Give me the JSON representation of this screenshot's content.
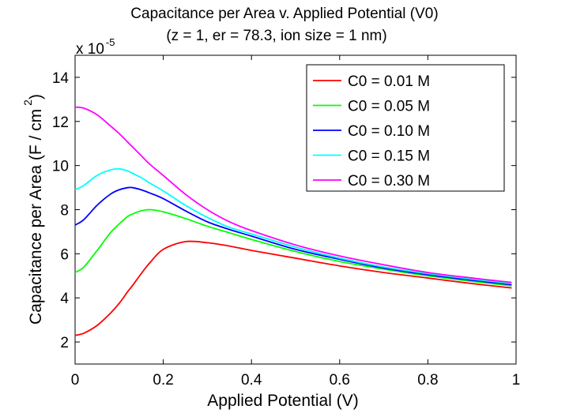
{
  "chart_data": {
    "type": "line",
    "title": "Capacitance per Area v. Applied Potential (V0)",
    "subtitle": "(z = 1, er = 78.3, ion size = 1 nm)",
    "xlabel": "Applied Potential (V)",
    "ylabel": "Capacitance per Area (F / cm",
    "ylabel_superscript": "2",
    "ylabel_close": ")",
    "y_multiplier_base": "x 10",
    "y_multiplier_exp": "-5",
    "xlim": [
      0,
      1
    ],
    "ylim": [
      1,
      15
    ],
    "x_ticks": [
      0,
      0.2,
      0.4,
      0.6,
      0.8,
      1
    ],
    "x_tick_labels": [
      "0",
      "0.2",
      "0.4",
      "0.6",
      "0.8",
      "1"
    ],
    "y_ticks": [
      2,
      4,
      6,
      8,
      10,
      12,
      14
    ],
    "y_tick_labels": [
      "2",
      "4",
      "6",
      "8",
      "10",
      "12",
      "14"
    ],
    "grid": false,
    "legend_position": "top-right",
    "x": [
      0,
      0.02,
      0.05,
      0.08,
      0.1,
      0.12,
      0.13,
      0.15,
      0.17,
      0.2,
      0.25,
      0.3,
      0.35,
      0.4,
      0.5,
      0.6,
      0.7,
      0.8,
      0.9,
      0.99
    ],
    "series": [
      {
        "name": "C0 = 0.01 M",
        "color": "#ff0000",
        "values": [
          2.3,
          2.4,
          2.75,
          3.3,
          3.75,
          4.3,
          4.55,
          5.1,
          5.6,
          6.2,
          6.55,
          6.5,
          6.35,
          6.15,
          5.8,
          5.45,
          5.15,
          4.9,
          4.65,
          4.45
        ]
      },
      {
        "name": "C0 = 0.05 M",
        "color": "#00ff00",
        "values": [
          5.15,
          5.4,
          6.15,
          6.95,
          7.35,
          7.7,
          7.8,
          7.95,
          8.0,
          7.9,
          7.6,
          7.25,
          6.95,
          6.65,
          6.1,
          5.65,
          5.3,
          5.0,
          4.75,
          4.55
        ]
      },
      {
        "name": "C0 = 0.10 M",
        "color": "#0000ff",
        "values": [
          7.3,
          7.55,
          8.2,
          8.7,
          8.9,
          9.0,
          9.0,
          8.9,
          8.75,
          8.5,
          7.95,
          7.45,
          7.1,
          6.8,
          6.2,
          5.75,
          5.35,
          5.05,
          4.8,
          4.6
        ]
      },
      {
        "name": "C0 = 0.15 M",
        "color": "#00ffff",
        "values": [
          8.9,
          9.1,
          9.55,
          9.8,
          9.85,
          9.75,
          9.65,
          9.45,
          9.2,
          8.85,
          8.2,
          7.65,
          7.2,
          6.9,
          6.3,
          5.8,
          5.4,
          5.1,
          4.85,
          4.65
        ]
      },
      {
        "name": "C0 = 0.30 M",
        "color": "#ff00ff",
        "values": [
          12.65,
          12.6,
          12.3,
          11.8,
          11.45,
          11.05,
          10.85,
          10.45,
          10.05,
          9.55,
          8.7,
          8.0,
          7.45,
          7.05,
          6.4,
          5.9,
          5.5,
          5.15,
          4.9,
          4.7
        ]
      }
    ]
  }
}
